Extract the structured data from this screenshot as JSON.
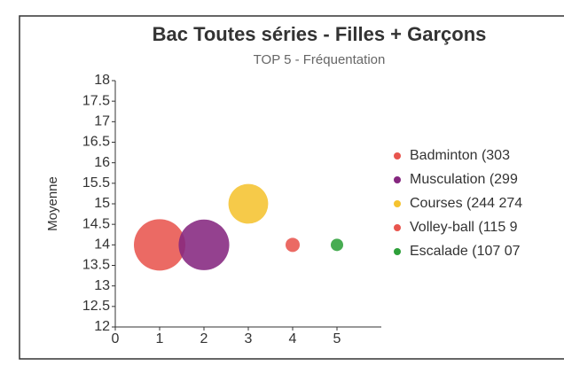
{
  "chart_data": {
    "type": "bubble",
    "title": "Bac Toutes séries - Filles + Garçons",
    "subtitle": "TOP 5 - Fréquentation",
    "y_label": "Moyenne",
    "xlim": [
      0,
      6
    ],
    "xticks": [
      0,
      1,
      2,
      3,
      4,
      5
    ],
    "ylim": [
      12,
      18
    ],
    "yticks": [
      12,
      12.5,
      13,
      13.5,
      14,
      14.5,
      15,
      15.5,
      16,
      16.5,
      17,
      17.5,
      18
    ],
    "grid": false,
    "legend": "right",
    "series": [
      {
        "name": "Badminton (303 ",
        "color": "#e8554e",
        "x": [
          1
        ],
        "values": [
          14
        ],
        "size": [
          303000
        ]
      },
      {
        "name": "Musculation (299",
        "color": "#85277f",
        "x": [
          2
        ],
        "values": [
          14
        ],
        "size": [
          299000
        ]
      },
      {
        "name": "Courses (244 274",
        "color": "#f5c330",
        "x": [
          3
        ],
        "values": [
          15
        ],
        "size": [
          244274
        ]
      },
      {
        "name": "Volley-ball (115 9",
        "color": "#e8554e",
        "x": [
          4
        ],
        "values": [
          14
        ],
        "size": [
          115900
        ]
      },
      {
        "name": "Escalade (107 07",
        "color": "#2ea03a",
        "x": [
          5
        ],
        "values": [
          14
        ],
        "size": [
          107070
        ]
      }
    ]
  }
}
